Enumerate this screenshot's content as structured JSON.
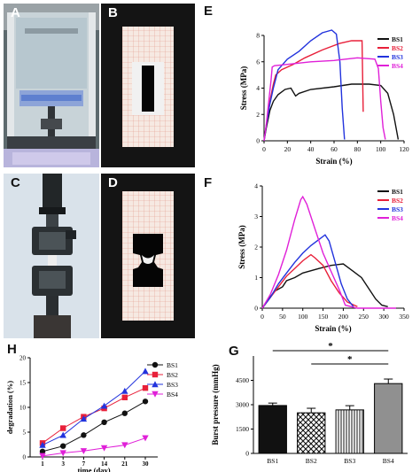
{
  "panel_labels": {
    "A": "A",
    "B": "B",
    "C": "C",
    "D": "D",
    "E": "E",
    "F": "F",
    "G": "G",
    "H": "H"
  },
  "chart_data": [
    {
      "id": "E",
      "type": "line",
      "xlabel": "Strain (%)",
      "ylabel": "Stress (MPa)",
      "xlim": [
        0,
        120
      ],
      "ylim": [
        0,
        8
      ],
      "xticks": [
        0,
        20,
        40,
        60,
        80,
        100,
        120
      ],
      "yticks": [
        0,
        2,
        4,
        6,
        8
      ],
      "legend_position": "top-right",
      "series": [
        {
          "name": "BS1",
          "color": "#111111",
          "points": [
            [
              0,
              0
            ],
            [
              2,
              1
            ],
            [
              5,
              2.3
            ],
            [
              8,
              3.0
            ],
            [
              12,
              3.5
            ],
            [
              18,
              3.9
            ],
            [
              23,
              4.0
            ],
            [
              27,
              3.4
            ],
            [
              30,
              3.6
            ],
            [
              40,
              3.9
            ],
            [
              60,
              4.1
            ],
            [
              75,
              4.3
            ],
            [
              90,
              4.3
            ],
            [
              100,
              4.2
            ],
            [
              106,
              3.6
            ],
            [
              111,
              2.0
            ],
            [
              115,
              0.1
            ]
          ]
        },
        {
          "name": "BS2",
          "color": "#e8203a",
          "points": [
            [
              0,
              0
            ],
            [
              2,
              1.2
            ],
            [
              5,
              3.0
            ],
            [
              8,
              4.3
            ],
            [
              10,
              5.0
            ],
            [
              15,
              5.4
            ],
            [
              25,
              5.8
            ],
            [
              35,
              6.3
            ],
            [
              50,
              6.9
            ],
            [
              65,
              7.4
            ],
            [
              75,
              7.6
            ],
            [
              84,
              7.6
            ],
            [
              85,
              2.2
            ]
          ]
        },
        {
          "name": "BS3",
          "color": "#2233dd",
          "points": [
            [
              0,
              0
            ],
            [
              2,
              1.2
            ],
            [
              5,
              2.8
            ],
            [
              8,
              4.0
            ],
            [
              10,
              4.7
            ],
            [
              12,
              5.4
            ],
            [
              20,
              6.2
            ],
            [
              30,
              6.8
            ],
            [
              40,
              7.6
            ],
            [
              50,
              8.2
            ],
            [
              58,
              8.4
            ],
            [
              62,
              8.1
            ],
            [
              65,
              6.0
            ],
            [
              67,
              2.5
            ],
            [
              69,
              0.1
            ]
          ]
        },
        {
          "name": "BS4",
          "color": "#e020d8",
          "points": [
            [
              0,
              0
            ],
            [
              2,
              1.3
            ],
            [
              4,
              3.0
            ],
            [
              6,
              4.6
            ],
            [
              7,
              5.6
            ],
            [
              9,
              5.7
            ],
            [
              20,
              5.8
            ],
            [
              40,
              6.0
            ],
            [
              60,
              6.1
            ],
            [
              80,
              6.3
            ],
            [
              95,
              6.2
            ],
            [
              98,
              5.5
            ],
            [
              100,
              3.0
            ],
            [
              102,
              1.0
            ],
            [
              104,
              0.1
            ]
          ]
        }
      ]
    },
    {
      "id": "F",
      "type": "line",
      "xlabel": "Strain (%)",
      "ylabel": "Stress (MPa)",
      "xlim": [
        0,
        350
      ],
      "ylim": [
        0,
        4
      ],
      "xticks": [
        0,
        50,
        100,
        150,
        200,
        250,
        300,
        350
      ],
      "yticks": [
        0,
        1,
        2,
        3,
        4
      ],
      "legend_position": "top-right",
      "series": [
        {
          "name": "BS1",
          "color": "#111111",
          "points": [
            [
              0,
              0
            ],
            [
              10,
              0.2
            ],
            [
              30,
              0.55
            ],
            [
              50,
              0.7
            ],
            [
              60,
              0.9
            ],
            [
              80,
              1.0
            ],
            [
              100,
              1.15
            ],
            [
              140,
              1.3
            ],
            [
              170,
              1.4
            ],
            [
              200,
              1.45
            ],
            [
              210,
              1.35
            ],
            [
              225,
              1.2
            ],
            [
              245,
              1.0
            ],
            [
              265,
              0.6
            ],
            [
              280,
              0.3
            ],
            [
              295,
              0.1
            ],
            [
              310,
              0.05
            ]
          ]
        },
        {
          "name": "BS2",
          "color": "#e8203a",
          "points": [
            [
              0,
              0
            ],
            [
              20,
              0.35
            ],
            [
              40,
              0.7
            ],
            [
              60,
              1.05
            ],
            [
              80,
              1.3
            ],
            [
              100,
              1.55
            ],
            [
              120,
              1.75
            ],
            [
              130,
              1.65
            ],
            [
              150,
              1.4
            ],
            [
              170,
              0.9
            ],
            [
              190,
              0.5
            ],
            [
              210,
              0.2
            ],
            [
              235,
              0.05
            ]
          ]
        },
        {
          "name": "BS3",
          "color": "#2233dd",
          "points": [
            [
              0,
              0
            ],
            [
              20,
              0.35
            ],
            [
              40,
              0.8
            ],
            [
              60,
              1.15
            ],
            [
              80,
              1.5
            ],
            [
              100,
              1.8
            ],
            [
              120,
              2.05
            ],
            [
              140,
              2.25
            ],
            [
              155,
              2.4
            ],
            [
              165,
              2.2
            ],
            [
              180,
              1.5
            ],
            [
              195,
              0.8
            ],
            [
              210,
              0.3
            ],
            [
              225,
              0.05
            ]
          ]
        },
        {
          "name": "BS4",
          "color": "#e020d8",
          "points": [
            [
              0,
              0
            ],
            [
              20,
              0.45
            ],
            [
              40,
              1.1
            ],
            [
              60,
              1.9
            ],
            [
              80,
              2.9
            ],
            [
              95,
              3.55
            ],
            [
              100,
              3.65
            ],
            [
              110,
              3.4
            ],
            [
              130,
              2.6
            ],
            [
              150,
              1.8
            ],
            [
              170,
              1.2
            ],
            [
              190,
              0.6
            ],
            [
              205,
              0.1
            ],
            [
              235,
              0.0
            ],
            [
              300,
              0.0
            ],
            [
              330,
              0.0
            ]
          ]
        }
      ]
    },
    {
      "id": "H",
      "type": "line",
      "xlabel": "time (day)",
      "ylabel": "degradation (%)",
      "categories": [
        "1",
        "3",
        "7",
        "14",
        "21",
        "30"
      ],
      "ylim": [
        0,
        20
      ],
      "yticks": [
        0,
        5,
        10,
        15,
        20
      ],
      "legend_position": "top-right",
      "series": [
        {
          "name": "BS1",
          "color": "#111111",
          "marker": "circle",
          "values": [
            1.1,
            2.2,
            4.4,
            7.0,
            8.8,
            11.2
          ]
        },
        {
          "name": "BS2",
          "color": "#e8203a",
          "marker": "square",
          "values": [
            2.8,
            5.8,
            8.1,
            9.8,
            12.0,
            13.9
          ]
        },
        {
          "name": "BS3",
          "color": "#2233dd",
          "marker": "triangle",
          "values": [
            2.4,
            4.4,
            7.7,
            10.3,
            13.3,
            17.3
          ]
        },
        {
          "name": "BS4",
          "color": "#e020d8",
          "marker": "triangle-down",
          "values": [
            0.2,
            0.8,
            1.2,
            1.8,
            2.4,
            3.8
          ]
        }
      ]
    },
    {
      "id": "G",
      "type": "bar",
      "ylabel": "Burst pressure (mmHg)",
      "categories": [
        "BS1",
        "BS2",
        "BS3",
        "BS4"
      ],
      "values": [
        2950,
        2500,
        2680,
        4300
      ],
      "errors": [
        150,
        280,
        260,
        280
      ],
      "ylim": [
        0,
        6000
      ],
      "yticks": [
        0,
        1500,
        3000,
        4500
      ],
      "significance": [
        {
          "from": "BS1",
          "to": "BS4",
          "label": "*"
        },
        {
          "from": "BS2",
          "to": "BS4",
          "label": "*"
        }
      ]
    }
  ]
}
